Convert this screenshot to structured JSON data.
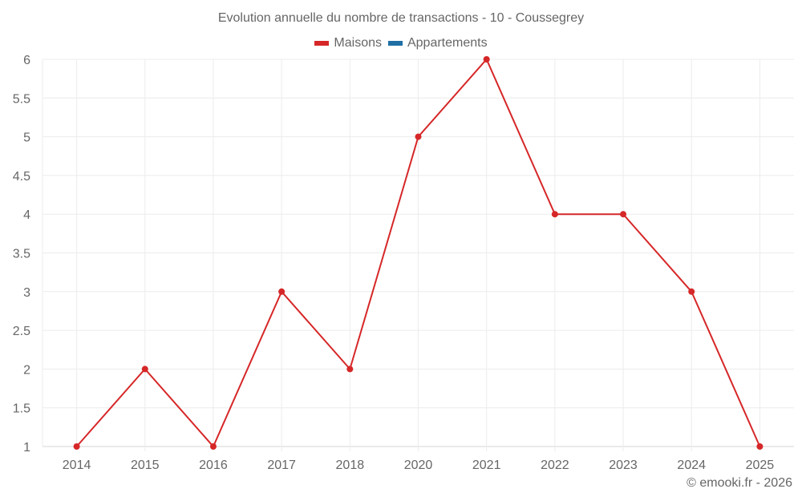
{
  "chart": {
    "title": "Evolution annuelle du nombre de transactions - 10 - Coussegrey",
    "legend": [
      {
        "label": "Maisons",
        "color": "#d62728"
      },
      {
        "label": "Appartements",
        "color": "#1f6fa5"
      }
    ],
    "credit": "© emooki.fr - 2026"
  },
  "chart_data": {
    "type": "line",
    "title": "Evolution annuelle du nombre de transactions - 10 - Coussegrey",
    "xlabel": "",
    "ylabel": "",
    "categories": [
      "2014",
      "2015",
      "2016",
      "2017",
      "2018",
      "2020",
      "2021",
      "2022",
      "2023",
      "2024",
      "2025"
    ],
    "series": [
      {
        "name": "Maisons",
        "color": "#d62728",
        "values": [
          1,
          2,
          1,
          3,
          2,
          5,
          6,
          4,
          4,
          3,
          1
        ]
      },
      {
        "name": "Appartements",
        "color": "#1f6fa5",
        "values": []
      }
    ],
    "ylim": [
      1,
      6
    ],
    "yticks": [
      "1",
      "1.5",
      "2",
      "2.5",
      "3",
      "3.5",
      "4",
      "4.5",
      "5",
      "5.5",
      "6"
    ],
    "grid": true,
    "legend_position": "top"
  }
}
